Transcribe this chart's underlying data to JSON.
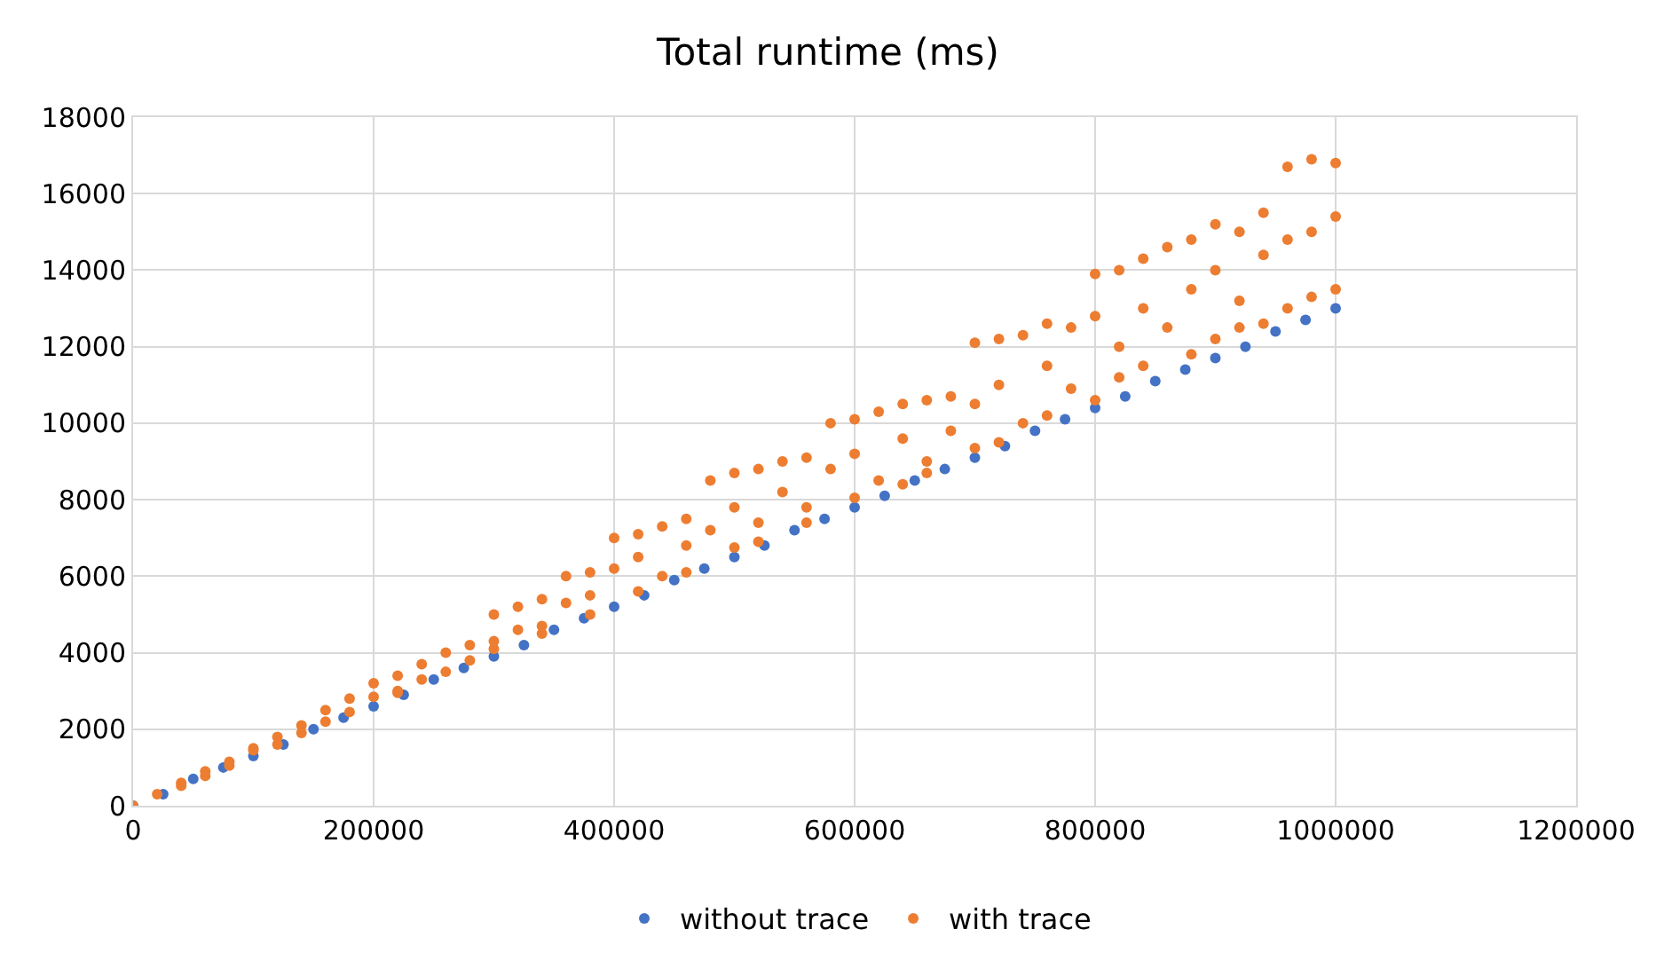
{
  "chart_data": {
    "type": "scatter",
    "title": "Total runtime (ms)",
    "xlim": [
      0,
      1200000
    ],
    "xticks": [
      0,
      200000,
      400000,
      600000,
      800000,
      1000000,
      1200000
    ],
    "ylim": [
      0,
      18000
    ],
    "yticks": [
      0,
      2000,
      4000,
      6000,
      8000,
      10000,
      12000,
      14000,
      16000,
      18000
    ],
    "grid": true,
    "legend": "bottom",
    "marker": "circle",
    "series": [
      {
        "name": "without trace",
        "color": "#4472c4",
        "x": [
          0,
          25000,
          50000,
          75000,
          100000,
          125000,
          150000,
          175000,
          200000,
          225000,
          250000,
          275000,
          300000,
          325000,
          350000,
          375000,
          400000,
          425000,
          450000,
          475000,
          500000,
          525000,
          550000,
          575000,
          600000,
          625000,
          650000,
          675000,
          700000,
          725000,
          750000,
          775000,
          800000,
          825000,
          850000,
          875000,
          900000,
          925000,
          950000,
          975000,
          1000000
        ],
        "values": [
          0,
          300,
          700,
          1000,
          1300,
          1600,
          2000,
          2300,
          2600,
          2900,
          3300,
          3600,
          3900,
          4200,
          4600,
          4900,
          5200,
          5500,
          5900,
          6200,
          6500,
          6800,
          7200,
          7500,
          7800,
          8100,
          8500,
          8800,
          9100,
          9400,
          9800,
          10100,
          10400,
          10700,
          11100,
          11400,
          11700,
          12000,
          12400,
          12700,
          13000
        ]
      },
      {
        "name": "with trace",
        "color": "#ed7d31",
        "x": [
          0,
          20000,
          40000,
          40000,
          60000,
          60000,
          80000,
          80000,
          100000,
          100000,
          120000,
          120000,
          140000,
          140000,
          160000,
          160000,
          180000,
          180000,
          200000,
          200000,
          220000,
          220000,
          220000,
          240000,
          240000,
          260000,
          260000,
          280000,
          280000,
          300000,
          300000,
          300000,
          320000,
          320000,
          340000,
          340000,
          340000,
          360000,
          360000,
          380000,
          380000,
          380000,
          400000,
          400000,
          420000,
          420000,
          420000,
          440000,
          440000,
          460000,
          460000,
          460000,
          480000,
          480000,
          500000,
          500000,
          500000,
          520000,
          520000,
          520000,
          540000,
          540000,
          560000,
          560000,
          560000,
          580000,
          580000,
          600000,
          600000,
          600000,
          620000,
          620000,
          640000,
          640000,
          640000,
          660000,
          660000,
          660000,
          680000,
          680000,
          700000,
          700000,
          700000,
          720000,
          720000,
          720000,
          740000,
          740000,
          760000,
          760000,
          760000,
          780000,
          780000,
          800000,
          800000,
          800000,
          820000,
          820000,
          820000,
          840000,
          840000,
          840000,
          860000,
          860000,
          880000,
          880000,
          880000,
          900000,
          900000,
          900000,
          920000,
          920000,
          920000,
          940000,
          940000,
          940000,
          960000,
          960000,
          960000,
          980000,
          980000,
          980000,
          1000000,
          1000000,
          1000000
        ],
        "values": [
          0,
          300,
          600,
          520,
          900,
          780,
          1150,
          1050,
          1500,
          1450,
          1800,
          1600,
          2100,
          1900,
          2500,
          2200,
          2800,
          2450,
          3200,
          2850,
          3400,
          3000,
          2950,
          3700,
          3300,
          4000,
          3500,
          4200,
          3800,
          5000,
          4300,
          4100,
          5200,
          4600,
          5400,
          4700,
          4500,
          6000,
          5300,
          6100,
          5500,
          5000,
          7000,
          6200,
          7100,
          6500,
          5600,
          7300,
          6000,
          7500,
          6800,
          6100,
          8500,
          7200,
          8700,
          7800,
          6750,
          8800,
          7400,
          6900,
          9000,
          8200,
          9100,
          7800,
          7400,
          10000,
          8800,
          10100,
          9200,
          8050,
          10300,
          8500,
          10500,
          9600,
          8400,
          10600,
          9000,
          8700,
          10700,
          9800,
          12100,
          10500,
          9350,
          12200,
          11000,
          9500,
          12300,
          10000,
          12600,
          11500,
          10200,
          12500,
          10900,
          13900,
          12800,
          10600,
          14000,
          12000,
          11200,
          14300,
          13000,
          11500,
          14600,
          12500,
          14800,
          13500,
          11800,
          15200,
          14000,
          12200,
          15000,
          13200,
          12500,
          15500,
          14400,
          12600,
          16700,
          14800,
          13000,
          16900,
          15000,
          13300,
          16800,
          15400,
          13500
        ]
      }
    ]
  }
}
